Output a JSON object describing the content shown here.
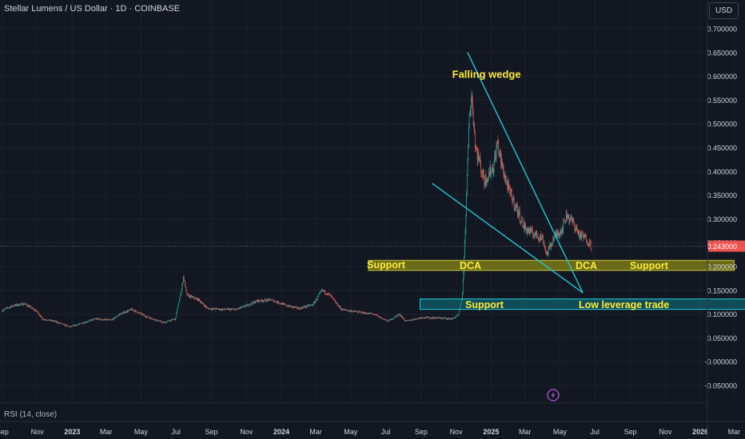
{
  "header": {
    "symbol_title": "Stellar Lumens / US Dollar · 1D · COINBASE",
    "currency": "USD"
  },
  "indicator": {
    "label": "RSI (14, close)"
  },
  "colors": {
    "background": "#131722",
    "grid": "#1e222d",
    "up": "#26a69a",
    "down": "#ef5350",
    "trendline": "#1fc8d8",
    "support_fill": "#7a7a18",
    "support_border": "#c9c93a",
    "lower_zone_fill": "#117a86",
    "annotation_text": "#ffeb3b",
    "axis_text": "#d1d4dc"
  },
  "chart_data": {
    "type": "candlestick",
    "title": "Stellar Lumens / US Dollar · 1D · COINBASE",
    "ylim": [
      -0.06,
      0.72
    ],
    "y_ticks": [
      "0.700000",
      "0.650000",
      "0.600000",
      "0.550000",
      "0.500000",
      "0.450000",
      "0.400000",
      "0.350000",
      "0.300000",
      "0.250000",
      "0.200000",
      "0.150000",
      "0.100000",
      "0.050000",
      "-0.000000",
      "-0.050000"
    ],
    "x_ticks": [
      "Sep",
      "Nov",
      "2023",
      "Mar",
      "May",
      "Jul",
      "Sep",
      "Nov",
      "2024",
      "Mar",
      "May",
      "Jul",
      "Sep",
      "Nov",
      "2025",
      "Mar",
      "May",
      "Jul",
      "Sep",
      "Nov",
      "2026",
      "Mar"
    ],
    "x_range": [
      "2022-08-28",
      "2026-03-20"
    ],
    "grid": true,
    "price_path": [
      [
        "2022-09-01",
        0.108
      ],
      [
        "2022-09-20",
        0.118
      ],
      [
        "2022-10-10",
        0.122
      ],
      [
        "2022-11-01",
        0.105
      ],
      [
        "2022-11-10",
        0.09
      ],
      [
        "2022-12-01",
        0.085
      ],
      [
        "2022-12-28",
        0.073
      ],
      [
        "2023-01-15",
        0.08
      ],
      [
        "2023-02-10",
        0.09
      ],
      [
        "2023-03-10",
        0.087
      ],
      [
        "2023-03-25",
        0.1
      ],
      [
        "2023-04-15",
        0.11
      ],
      [
        "2023-05-10",
        0.095
      ],
      [
        "2023-06-10",
        0.082
      ],
      [
        "2023-06-30",
        0.09
      ],
      [
        "2023-07-12",
        0.16
      ],
      [
        "2023-07-14",
        0.18
      ],
      [
        "2023-07-20",
        0.14
      ],
      [
        "2023-08-10",
        0.13
      ],
      [
        "2023-08-25",
        0.112
      ],
      [
        "2023-09-20",
        0.11
      ],
      [
        "2023-10-15",
        0.11
      ],
      [
        "2023-11-05",
        0.12
      ],
      [
        "2023-11-20",
        0.128
      ],
      [
        "2023-12-15",
        0.13
      ],
      [
        "2024-01-10",
        0.118
      ],
      [
        "2024-02-01",
        0.112
      ],
      [
        "2024-02-25",
        0.12
      ],
      [
        "2024-03-12",
        0.15
      ],
      [
        "2024-03-25",
        0.14
      ],
      [
        "2024-04-15",
        0.11
      ],
      [
        "2024-05-10",
        0.105
      ],
      [
        "2024-06-10",
        0.1
      ],
      [
        "2024-07-05",
        0.085
      ],
      [
        "2024-07-25",
        0.1
      ],
      [
        "2024-08-05",
        0.085
      ],
      [
        "2024-09-01",
        0.093
      ],
      [
        "2024-10-01",
        0.092
      ],
      [
        "2024-10-25",
        0.09
      ],
      [
        "2024-11-05",
        0.098
      ],
      [
        "2024-11-12",
        0.14
      ],
      [
        "2024-11-16",
        0.25
      ],
      [
        "2024-11-20",
        0.38
      ],
      [
        "2024-11-24",
        0.52
      ],
      [
        "2024-11-28",
        0.56
      ],
      [
        "2024-12-05",
        0.45
      ],
      [
        "2024-12-12",
        0.42
      ],
      [
        "2024-12-20",
        0.38
      ],
      [
        "2025-01-05",
        0.41
      ],
      [
        "2025-01-12",
        0.46
      ],
      [
        "2025-01-20",
        0.41
      ],
      [
        "2025-02-01",
        0.36
      ],
      [
        "2025-02-15",
        0.32
      ],
      [
        "2025-03-01",
        0.28
      ],
      [
        "2025-03-15",
        0.27
      ],
      [
        "2025-04-01",
        0.26
      ],
      [
        "2025-04-08",
        0.225
      ],
      [
        "2025-04-20",
        0.26
      ],
      [
        "2025-05-05",
        0.28
      ],
      [
        "2025-05-13",
        0.31
      ],
      [
        "2025-05-25",
        0.29
      ],
      [
        "2025-06-05",
        0.265
      ],
      [
        "2025-06-15",
        0.26
      ],
      [
        "2025-06-25",
        0.245
      ]
    ],
    "last_price": 0.243,
    "annotations": [
      {
        "type": "text",
        "text": "Falling wedge",
        "date": "2024-10-25",
        "price": 0.597
      },
      {
        "type": "line",
        "label": "wedge-upper",
        "from": [
          "2024-11-21",
          0.65
        ],
        "to": [
          "2025-06-10",
          0.145
        ]
      },
      {
        "type": "line",
        "label": "wedge-lower",
        "from": [
          "2024-09-20",
          0.375
        ],
        "to": [
          "2025-06-10",
          0.145
        ]
      },
      {
        "type": "zone",
        "label": "support-dca-zone",
        "date_from": "2024-06-01",
        "date_to": "2026-03-01",
        "price_low": 0.192,
        "price_high": 0.213
      },
      {
        "type": "zone",
        "label": "low-leverage-zone",
        "date_from": "2024-08-30",
        "date_to": "2026-04-10",
        "price_low": 0.11,
        "price_high": 0.132
      }
    ],
    "zone_labels": {
      "support_left": "Support",
      "dca_left": "DCA",
      "dca_right": "DCA",
      "support_right": "Support",
      "support_lower": "Support",
      "low_leverage": "Low leverage trade"
    }
  }
}
